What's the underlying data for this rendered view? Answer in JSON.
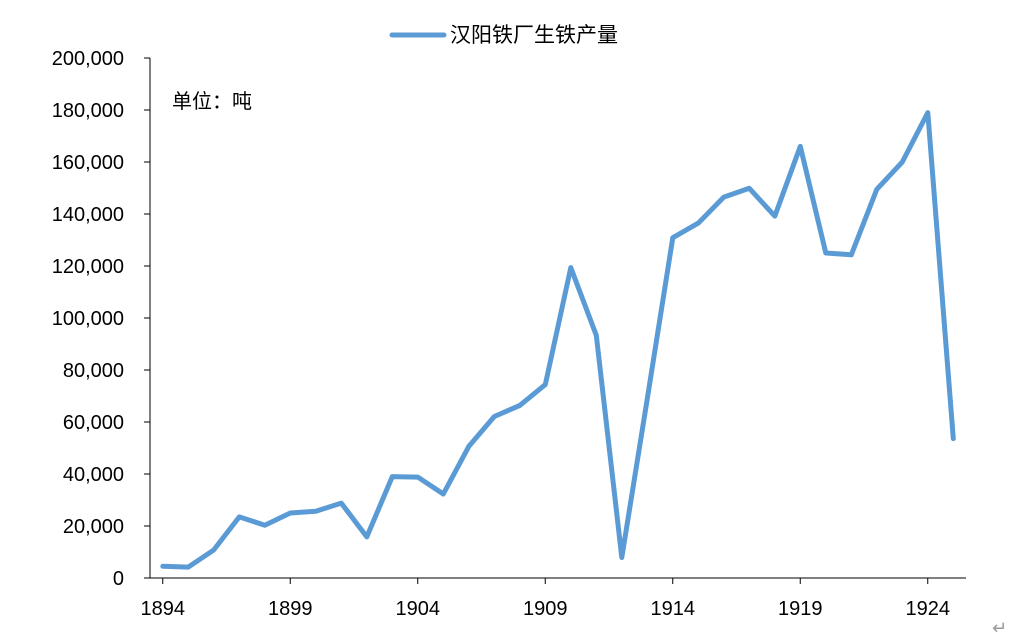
{
  "chart_data": {
    "type": "line",
    "legend": "汉阳铁厂生铁产量",
    "legend_position": "top-center",
    "unit_note": "单位：吨",
    "x": [
      1894,
      1895,
      1896,
      1897,
      1898,
      1899,
      1900,
      1901,
      1902,
      1903,
      1904,
      1905,
      1906,
      1907,
      1908,
      1909,
      1910,
      1911,
      1912,
      1913,
      1914,
      1915,
      1916,
      1917,
      1918,
      1919,
      1920,
      1921,
      1922,
      1923,
      1924,
      1925
    ],
    "series": [
      {
        "name": "汉阳铁厂生铁产量",
        "color": "#5b9bd5",
        "values": [
          4500,
          4200,
          10800,
          23500,
          20300,
          25000,
          25700,
          28800,
          15800,
          39000,
          38800,
          32300,
          50600,
          62100,
          66400,
          74400,
          119400,
          93300,
          7900,
          69000,
          130900,
          136500,
          146500,
          149900,
          139200,
          166000,
          125000,
          124300,
          149500,
          160000,
          179000,
          53600
        ]
      }
    ],
    "y_ticks": [
      "0",
      "20,000",
      "40,000",
      "60,000",
      "80,000",
      "100,000",
      "120,000",
      "140,000",
      "160,000",
      "180,000",
      "200,000"
    ],
    "x_ticks": [
      "1894",
      "1899",
      "1904",
      "1909",
      "1914",
      "1919",
      "1924"
    ],
    "ylim": [
      0,
      200000
    ],
    "xlim": [
      1893.5,
      1925.5
    ],
    "grid": false
  },
  "return_mark": "↵"
}
